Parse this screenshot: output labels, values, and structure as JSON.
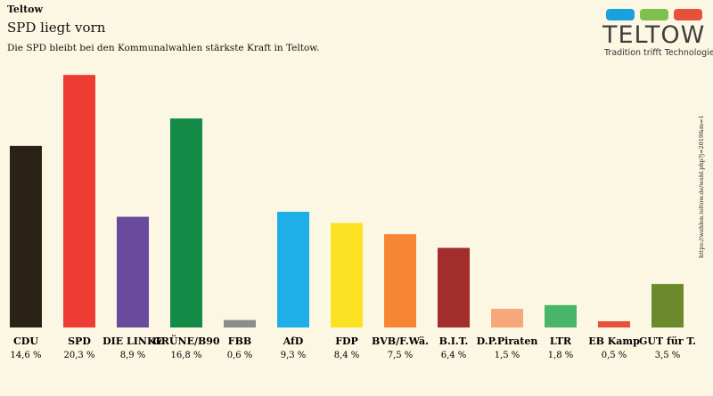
{
  "header": {
    "kicker": "Teltow",
    "title": "SPD liegt vorn",
    "subtitle": "Die SPD bleibt bei den Kommunalwahlen stärkste Kraft in Teltow."
  },
  "logo": {
    "wordmark": "TELTOW",
    "tagline": "Tradition trifft Technologie.",
    "tile_colors": [
      "#1aa0dc",
      "#7fbf4d",
      "#e8503e"
    ]
  },
  "source_note": "https://wahlen.teltow.de/wahl.php?j=2019&m=1",
  "chart_data": {
    "type": "bar",
    "title": "",
    "xlabel": "",
    "ylabel": "",
    "ylim": [
      0,
      22
    ],
    "grid": false,
    "categories": [
      "CDU",
      "SPD",
      "DIE LINKE",
      "GRÜNE/B90",
      "FBB",
      "AfD",
      "FDP",
      "BVB/F.Wä.",
      "B.I.T.",
      "D.P.Piraten",
      "LTR",
      "EB Kamp",
      "GUT für T."
    ],
    "values": [
      14.6,
      20.3,
      8.9,
      16.8,
      0.6,
      9.3,
      8.4,
      7.5,
      6.4,
      1.5,
      1.8,
      0.5,
      3.5
    ],
    "value_labels": [
      "14,6 %",
      "20,3 %",
      "8,9 %",
      "16,8 %",
      "0,6 %",
      "9,3 %",
      "8,4 %",
      "7,5 %",
      "6,4 %",
      "1,5 %",
      "1,8 %",
      "0,5 %",
      "3,5 %"
    ],
    "colors": [
      "#2a2217",
      "#ee3b34",
      "#6a4a9c",
      "#138a45",
      "#8c8c8c",
      "#1eaee8",
      "#fbe223",
      "#f68534",
      "#a32c2c",
      "#f7a87a",
      "#48b56a",
      "#e8503e",
      "#6b8a2c"
    ]
  }
}
